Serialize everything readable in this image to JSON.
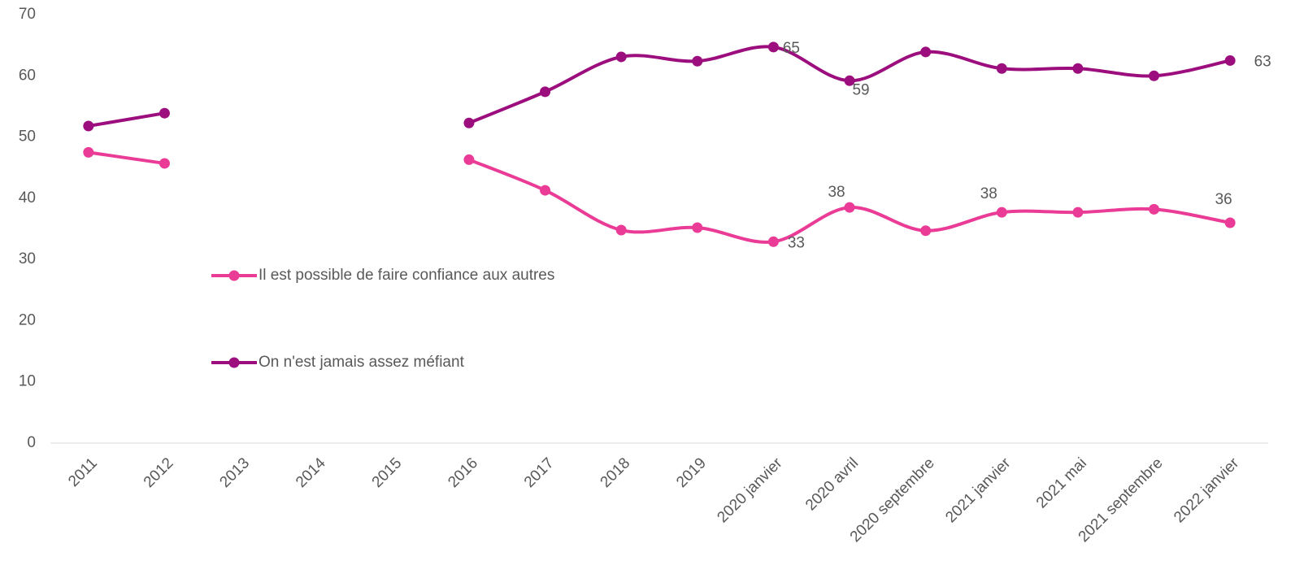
{
  "chart_data": {
    "type": "line",
    "categories": [
      "2011",
      "2012",
      "2013",
      "2014",
      "2015",
      "2016",
      "2017",
      "2018",
      "2019",
      "2020 janvier",
      "2020 avril",
      "2020 septembre",
      "2021 janvier",
      "2021 mai",
      "2021 septembre",
      "2022 janvier"
    ],
    "series": [
      {
        "name": "Il est possible de faire confiance aux autres",
        "color": "#ea3c96",
        "values": [
          47.5,
          45.7,
          null,
          null,
          null,
          46.3,
          41.3,
          34.8,
          35.2,
          32.9,
          38.5,
          34.7,
          37.7,
          37.7,
          38.2,
          36.0
        ],
        "value_labels": [
          null,
          null,
          null,
          null,
          null,
          null,
          null,
          null,
          null,
          "33",
          "38",
          null,
          "38",
          null,
          null,
          "36"
        ]
      },
      {
        "name": "On n'est jamais assez méfiant",
        "color": "#9c0e7e",
        "values": [
          51.8,
          53.9,
          null,
          null,
          null,
          52.3,
          57.4,
          63.1,
          62.4,
          64.7,
          59.2,
          63.9,
          61.2,
          61.2,
          60.0,
          62.5
        ],
        "value_labels": [
          null,
          null,
          null,
          null,
          null,
          null,
          null,
          null,
          null,
          "65",
          "59",
          null,
          null,
          null,
          null,
          "63"
        ]
      }
    ],
    "ylim": [
      0,
      70
    ],
    "yticks": [
      0,
      10,
      20,
      30,
      40,
      50,
      60,
      70
    ],
    "grid": false
  }
}
